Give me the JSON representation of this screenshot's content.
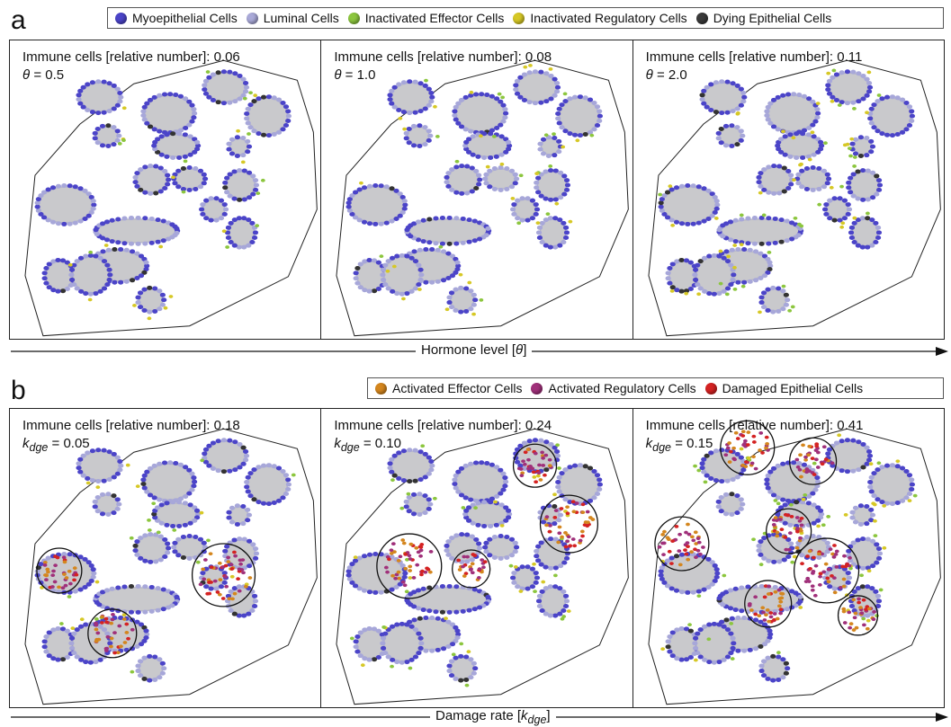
{
  "panel_a": {
    "letter": "a",
    "legend": [
      {
        "label": "Myoepithelial Cells",
        "color": "#4b44c8"
      },
      {
        "label": "Luminal Cells",
        "color": "#a9a9d8"
      },
      {
        "label": "Inactivated Effector Cells",
        "color": "#8cc63e"
      },
      {
        "label": "Inactivated Regulatory Cells",
        "color": "#d6c826"
      },
      {
        "label": "Dying Epithelial Cells",
        "color": "#3a3a3a"
      }
    ],
    "subpanels": [
      {
        "caption": "Immune cells [relative number]: 0.06",
        "param_symbol": "θ",
        "param_value": "= 0.5"
      },
      {
        "caption": "Immune cells [relative number]: 0.08",
        "param_symbol": "θ",
        "param_value": "= 1.0"
      },
      {
        "caption": "Immune cells [relative number]: 0.11",
        "param_symbol": "θ",
        "param_value": "= 2.0"
      }
    ],
    "axis_label_text": "Hormone level [",
    "axis_label_symbol": "θ",
    "axis_label_close": "]"
  },
  "panel_b": {
    "letter": "b",
    "legend": [
      {
        "label": "Activated Effector Cells",
        "color": "#d4861e"
      },
      {
        "label": "Activated Regulatory Cells",
        "color": "#a0307a"
      },
      {
        "label": "Damaged Epithelial Cells",
        "color": "#d42222"
      }
    ],
    "subpanels": [
      {
        "caption": "Immune cells [relative number]: 0.18",
        "param_symbol": "k",
        "param_sub": "dge",
        "param_value": "= 0.05"
      },
      {
        "caption": "Immune cells [relative number]: 0.24",
        "param_symbol": "k",
        "param_sub": "dge",
        "param_value": "= 0.10"
      },
      {
        "caption": "Immune cells [relative number]: 0.41",
        "param_symbol": "k",
        "param_sub": "dge",
        "param_value": "= 0.15"
      }
    ],
    "axis_label_text": "Damage rate [",
    "axis_label_symbol": "k",
    "axis_label_sub": "dge",
    "axis_label_close": "]"
  }
}
